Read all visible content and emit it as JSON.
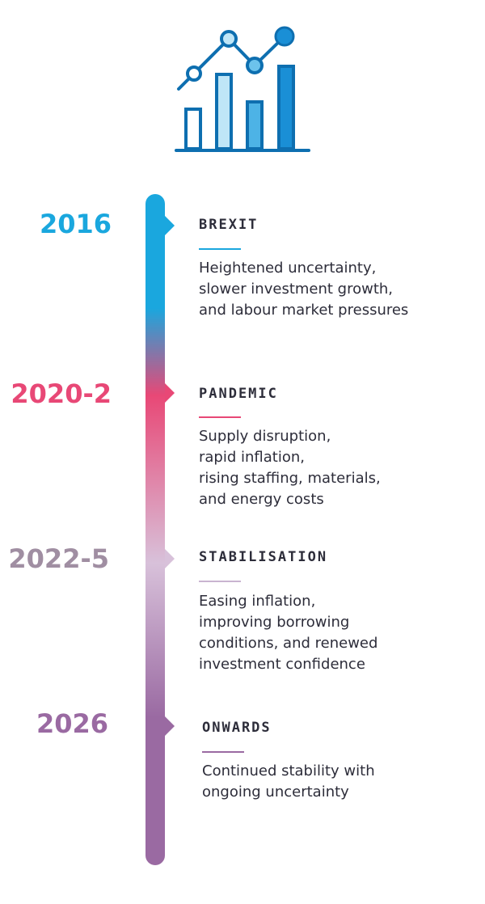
{
  "icon": {
    "name": "bar-chart-trend-icon",
    "colors": [
      "#0e6fb0",
      "#8ad0f0",
      "#1a9ad6",
      "#0072c6"
    ]
  },
  "timeline": {
    "gradient": [
      "#1aa7de",
      "#1aa7de",
      "#e84876",
      "#d8c1da",
      "#9a6aa2",
      "#9a6aa2"
    ],
    "events": [
      {
        "year": "2016",
        "year_color": "#1aa7de",
        "heading": "BREXIT",
        "rule_color": "#1aa7de",
        "lines": [
          "Heightened uncertainty,",
          "slower investment growth,",
          "and labour market pressures"
        ]
      },
      {
        "year": "2020-2",
        "year_color": "#e84876",
        "heading": "PANDEMIC",
        "rule_color": "#e84876",
        "lines": [
          "Supply disruption,",
          "rapid inflation,",
          "rising staffing, materials,",
          "and energy costs"
        ]
      },
      {
        "year": "2022-5",
        "year_color": "#a08ea2",
        "heading": "STABILISATION",
        "rule_color": "#c9b4d0",
        "lines": [
          "Easing inflation,",
          "improving borrowing",
          "conditions, and renewed",
          "investment confidence"
        ]
      },
      {
        "year": "2026",
        "year_color": "#9a6aa2",
        "heading": "ONWARDS",
        "rule_color": "#9a6aa2",
        "lines": [
          "Continued stability with",
          "ongoing uncertainty"
        ]
      }
    ]
  }
}
